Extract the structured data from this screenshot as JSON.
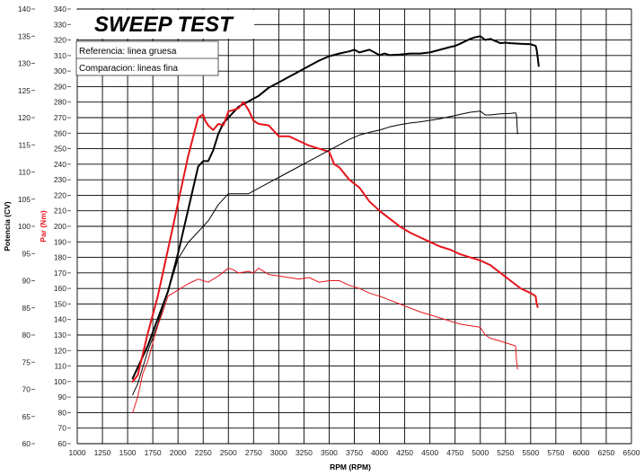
{
  "chart_data": {
    "type": "line",
    "title": "SWEEP TEST",
    "legend": [
      "Referencia: linea gruesa",
      "Comparacion: lineas fina"
    ],
    "xlabel": "RPM (RPM)",
    "ylabel_left": "Potencia (CV)",
    "ylabel_right": "Par (Nm)",
    "xlim": [
      1000,
      6500
    ],
    "ylim_power": [
      60,
      140
    ],
    "ylim_torque": [
      60,
      340
    ],
    "x_ticks": [
      1000,
      1250,
      1500,
      1750,
      2000,
      2250,
      2500,
      2750,
      3000,
      3250,
      3500,
      3750,
      4000,
      4250,
      4500,
      4750,
      5000,
      5250,
      5500,
      5750,
      6000,
      6250,
      6500
    ],
    "power_ticks": [
      60,
      65,
      70,
      75,
      80,
      85,
      90,
      95,
      100,
      105,
      110,
      115,
      120,
      125,
      130,
      135,
      140
    ],
    "torque_ticks": [
      60,
      70,
      80,
      90,
      100,
      110,
      120,
      130,
      140,
      150,
      160,
      170,
      180,
      190,
      200,
      210,
      220,
      230,
      240,
      250,
      260,
      270,
      280,
      290,
      300,
      310,
      320,
      330,
      340
    ],
    "colors": {
      "power": "#000000",
      "torque": "#e8141c",
      "grid": "#000000"
    },
    "series": [
      {
        "name": "Potencia referencia",
        "axis": "power",
        "style": "thick",
        "x": [
          1550,
          1600,
          1700,
          1800,
          1900,
          2000,
          2100,
          2200,
          2250,
          2300,
          2350,
          2400,
          2450,
          2500,
          2600,
          2700,
          2800,
          2900,
          3000,
          3100,
          3200,
          3300,
          3400,
          3500,
          3600,
          3700,
          3750,
          3800,
          3900,
          4000,
          4050,
          4100,
          4200,
          4300,
          4400,
          4500,
          4600,
          4700,
          4750,
          4800,
          4900,
          4950,
          5000,
          5050,
          5100,
          5200,
          5250,
          5300,
          5400,
          5500,
          5550,
          5560,
          5570,
          5580
        ],
        "y": [
          72,
          74,
          78,
          83,
          88,
          95,
          103,
          111,
          112,
          112,
          114,
          117,
          119,
          120,
          122,
          123,
          124,
          125.5,
          126.5,
          127.5,
          128.5,
          129.5,
          130.5,
          131.3,
          131.8,
          132.2,
          132.5,
          132.0,
          132.5,
          131.5,
          131.8,
          131.5,
          131.6,
          131.8,
          131.8,
          132.0,
          132.5,
          133.0,
          133.2,
          133.6,
          134.5,
          134.8,
          135.0,
          134.3,
          134.5,
          133.7,
          133.8,
          133.7,
          133.6,
          133.5,
          133.2,
          132.5,
          131,
          129.5
        ]
      },
      {
        "name": "Par referencia",
        "axis": "torque",
        "style": "thick",
        "x": [
          1550,
          1600,
          1700,
          1800,
          1900,
          2000,
          2100,
          2200,
          2250,
          2270,
          2300,
          2350,
          2400,
          2450,
          2500,
          2550,
          2600,
          2650,
          2700,
          2750,
          2800,
          2900,
          3000,
          3100,
          3200,
          3300,
          3400,
          3500,
          3550,
          3600,
          3700,
          3800,
          3900,
          4000,
          4100,
          4200,
          4300,
          4400,
          4500,
          4600,
          4700,
          4800,
          4900,
          5000,
          5100,
          5200,
          5300,
          5400,
          5500,
          5550,
          5560,
          5570
        ],
        "y": [
          100,
          104,
          131,
          155,
          185,
          215,
          245,
          270,
          272,
          268,
          265,
          262,
          266,
          265,
          274,
          275,
          276,
          280,
          275,
          268,
          266,
          265,
          258,
          258,
          255,
          252,
          250,
          248,
          240,
          238,
          230,
          225,
          216,
          210,
          205,
          200,
          196,
          193,
          190,
          187,
          185,
          182,
          180,
          178,
          175,
          170,
          165,
          160,
          157,
          155,
          150,
          148
        ]
      },
      {
        "name": "Potencia comparacion",
        "axis": "power",
        "style": "thin",
        "x": [
          1550,
          1600,
          1700,
          1800,
          1900,
          2000,
          2100,
          2200,
          2300,
          2400,
          2500,
          2600,
          2700,
          2800,
          2900,
          3000,
          3100,
          3200,
          3300,
          3400,
          3500,
          3600,
          3700,
          3800,
          3900,
          4000,
          4100,
          4200,
          4300,
          4400,
          4500,
          4600,
          4700,
          4800,
          4900,
          5000,
          5050,
          5100,
          5200,
          5300,
          5350,
          5360,
          5370
        ],
        "y": [
          69,
          71,
          77,
          82,
          88,
          94,
          97,
          99,
          101,
          104,
          106,
          106,
          106,
          107,
          108,
          109,
          110,
          111,
          112,
          113,
          114,
          115,
          116,
          116.8,
          117.3,
          117.7,
          118.3,
          118.7,
          119,
          119.2,
          119.5,
          119.8,
          120.2,
          120.6,
          121,
          121.2,
          120.5,
          120.5,
          120.7,
          120.8,
          120.9,
          120.3,
          117
        ]
      },
      {
        "name": "Par comparacion",
        "axis": "torque",
        "style": "thin",
        "x": [
          1550,
          1600,
          1650,
          1700,
          1750,
          1800,
          1850,
          1900,
          2000,
          2100,
          2200,
          2300,
          2400,
          2500,
          2550,
          2600,
          2700,
          2750,
          2800,
          2900,
          3000,
          3100,
          3200,
          3300,
          3400,
          3500,
          3600,
          3700,
          3800,
          3900,
          4000,
          4200,
          4400,
          4600,
          4800,
          5000,
          5050,
          5100,
          5200,
          5300,
          5350,
          5360,
          5370
        ],
        "y": [
          80,
          90,
          105,
          113,
          125,
          136,
          145,
          155,
          159,
          163,
          166,
          164,
          168,
          173,
          172,
          170,
          171,
          170,
          173,
          169,
          168,
          167,
          166,
          167,
          164,
          165,
          165,
          162,
          160,
          157,
          155,
          150,
          145,
          141,
          137,
          135,
          130,
          128,
          126,
          124,
          123,
          113,
          108
        ]
      }
    ]
  }
}
